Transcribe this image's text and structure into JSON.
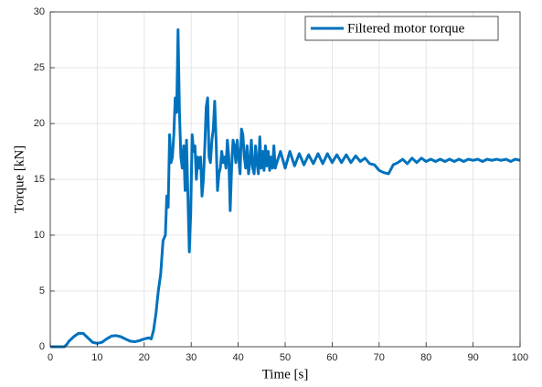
{
  "chart_data": {
    "type": "line",
    "xlabel": "Time [s]",
    "ylabel": "Torque [kN]",
    "xlim": [
      0,
      100
    ],
    "ylim": [
      0,
      30
    ],
    "xticks": [
      0,
      10,
      20,
      30,
      40,
      50,
      60,
      70,
      80,
      90,
      100
    ],
    "yticks": [
      0,
      5,
      10,
      15,
      20,
      25,
      30
    ],
    "grid": true,
    "legend": "upper right",
    "series": [
      {
        "name": "Filtered motor torque",
        "color": "#0072bd",
        "x": [
          0,
          1,
          2,
          3,
          3.5,
          4,
          5,
          6,
          7,
          8,
          9,
          10,
          11,
          12,
          13,
          14,
          15,
          16,
          17,
          18,
          19,
          20,
          21,
          21.5,
          22,
          22.5,
          23,
          23.5,
          24,
          24.5,
          24.8,
          25.1,
          25.4,
          25.7,
          26,
          26.3,
          26.6,
          26.9,
          27.2,
          27.5,
          27.8,
          28.1,
          28.4,
          28.7,
          29,
          29.3,
          29.6,
          29.9,
          30.2,
          30.5,
          30.8,
          31.1,
          31.4,
          31.7,
          32,
          32.3,
          32.6,
          32.9,
          33.2,
          33.5,
          33.8,
          34.1,
          34.4,
          34.7,
          35,
          35.3,
          35.6,
          35.9,
          36.2,
          36.5,
          36.8,
          37.1,
          37.4,
          37.7,
          38,
          38.3,
          38.6,
          38.9,
          39.2,
          39.5,
          39.8,
          40.1,
          40.4,
          40.7,
          41,
          41.3,
          41.6,
          41.9,
          42.2,
          42.5,
          42.8,
          43.1,
          43.4,
          43.7,
          44,
          44.3,
          44.6,
          44.9,
          45.2,
          45.5,
          45.8,
          46.1,
          46.4,
          46.7,
          47,
          47.3,
          47.6,
          47.9,
          48,
          49,
          50,
          51,
          52,
          53,
          54,
          55,
          56,
          57,
          58,
          59,
          60,
          61,
          62,
          63,
          64,
          65,
          66,
          67,
          68,
          69,
          70,
          71,
          72,
          73,
          74,
          75,
          76,
          77,
          78,
          79,
          80,
          81,
          82,
          83,
          84,
          85,
          86,
          87,
          88,
          89,
          90,
          91,
          92,
          93,
          94,
          95,
          96,
          97,
          98,
          99,
          100
        ],
        "values": [
          0,
          0,
          0,
          0,
          0.2,
          0.5,
          0.9,
          1.2,
          1.2,
          0.8,
          0.4,
          0.3,
          0.4,
          0.7,
          0.95,
          1.0,
          0.9,
          0.7,
          0.5,
          0.45,
          0.55,
          0.7,
          0.8,
          0.7,
          1.5,
          3,
          5,
          6.5,
          9.5,
          10,
          13.5,
          12.5,
          19,
          16.5,
          17,
          19,
          22.3,
          21,
          28.4,
          21,
          17,
          16,
          18,
          14,
          18.5,
          13.5,
          8.5,
          12,
          19,
          17.5,
          18,
          15,
          17,
          16,
          17,
          13.5,
          15,
          18,
          21.5,
          22.3,
          17,
          16.5,
          18.5,
          19.5,
          22,
          18.5,
          14,
          15.5,
          16,
          17.5,
          16.5,
          17,
          16,
          18.5,
          17,
          12.2,
          16,
          18.5,
          18,
          16.5,
          18.5,
          17,
          15.5,
          19.5,
          19,
          17,
          16,
          18,
          15.5,
          16.5,
          18.5,
          16,
          15.5,
          18,
          16.5,
          15.5,
          18.8,
          16,
          17.5,
          15.8,
          18,
          16.2,
          17.5,
          15.8,
          17,
          16,
          18,
          16,
          16.2,
          17.5,
          16,
          17.5,
          16.2,
          17.3,
          16.3,
          17.2,
          16.4,
          17.3,
          16.4,
          17.3,
          16.5,
          17.2,
          16.5,
          17.2,
          16.5,
          17.1,
          16.6,
          16.9,
          16.4,
          16.3,
          15.8,
          15.6,
          15.5,
          16.3,
          16.5,
          16.8,
          16.4,
          16.9,
          16.5,
          16.9,
          16.6,
          16.8,
          16.6,
          16.8,
          16.6,
          16.8,
          16.6,
          16.8,
          16.6,
          16.8,
          16.7,
          16.8,
          16.6,
          16.8,
          16.7,
          16.8,
          16.7,
          16.8,
          16.6,
          16.8,
          16.7
        ]
      }
    ]
  }
}
